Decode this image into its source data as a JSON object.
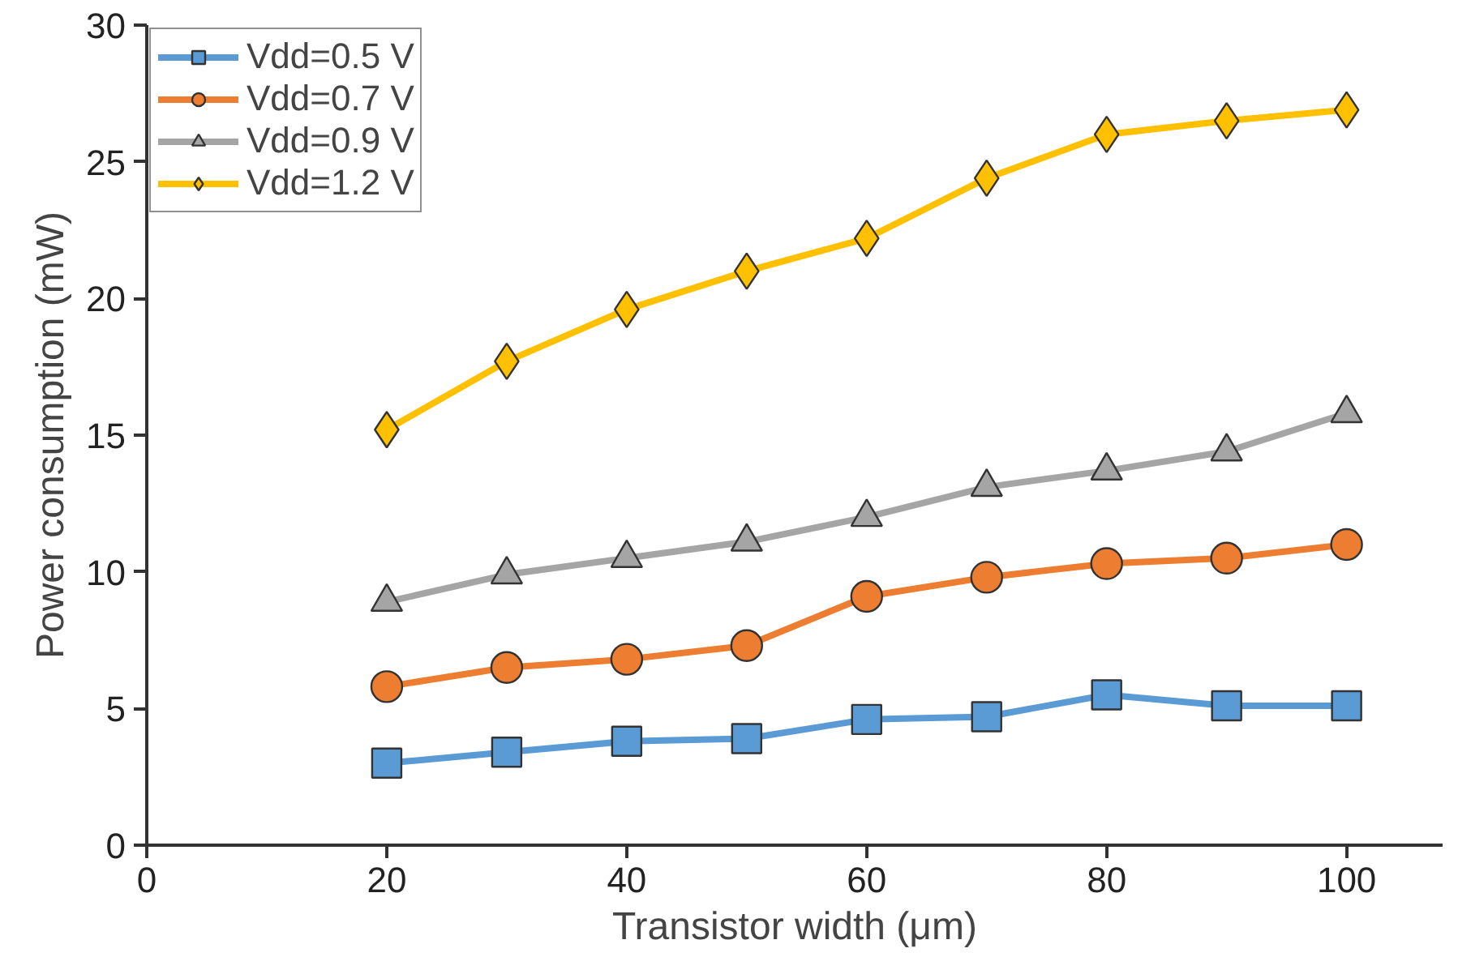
{
  "chart_data": {
    "type": "line",
    "xlabel": "Transistor width (μm)",
    "ylabel": "Power consumption (mW)",
    "x": [
      20,
      30,
      40,
      50,
      60,
      70,
      80,
      90,
      100
    ],
    "series": [
      {
        "name": "Vdd=0.5 V",
        "color": "#5b9bd5",
        "marker": "square",
        "values": [
          3.0,
          3.4,
          3.8,
          3.9,
          4.6,
          4.7,
          5.5,
          5.1,
          5.1
        ]
      },
      {
        "name": "Vdd=0.7 V",
        "color": "#ed7d31",
        "marker": "circle",
        "values": [
          5.8,
          6.5,
          6.8,
          7.3,
          9.1,
          9.8,
          10.3,
          10.5,
          11.0
        ]
      },
      {
        "name": "Vdd=0.9 V",
        "color": "#a5a5a5",
        "marker": "triangle",
        "values": [
          8.9,
          9.9,
          10.5,
          11.1,
          12.0,
          13.1,
          13.7,
          14.4,
          15.8
        ]
      },
      {
        "name": "Vdd=1.2 V",
        "color": "#ffc000",
        "marker": "diamond",
        "values": [
          15.2,
          17.7,
          19.6,
          21.0,
          22.2,
          24.4,
          26.0,
          26.5,
          26.9
        ]
      }
    ],
    "xlim": [
      0,
      108
    ],
    "ylim": [
      0,
      30
    ],
    "xticks": [
      0,
      20,
      40,
      60,
      80,
      100
    ],
    "yticks": [
      0,
      5,
      10,
      15,
      20,
      25,
      30
    ],
    "grid": false,
    "legend": "top left",
    "line_style": "solid"
  }
}
